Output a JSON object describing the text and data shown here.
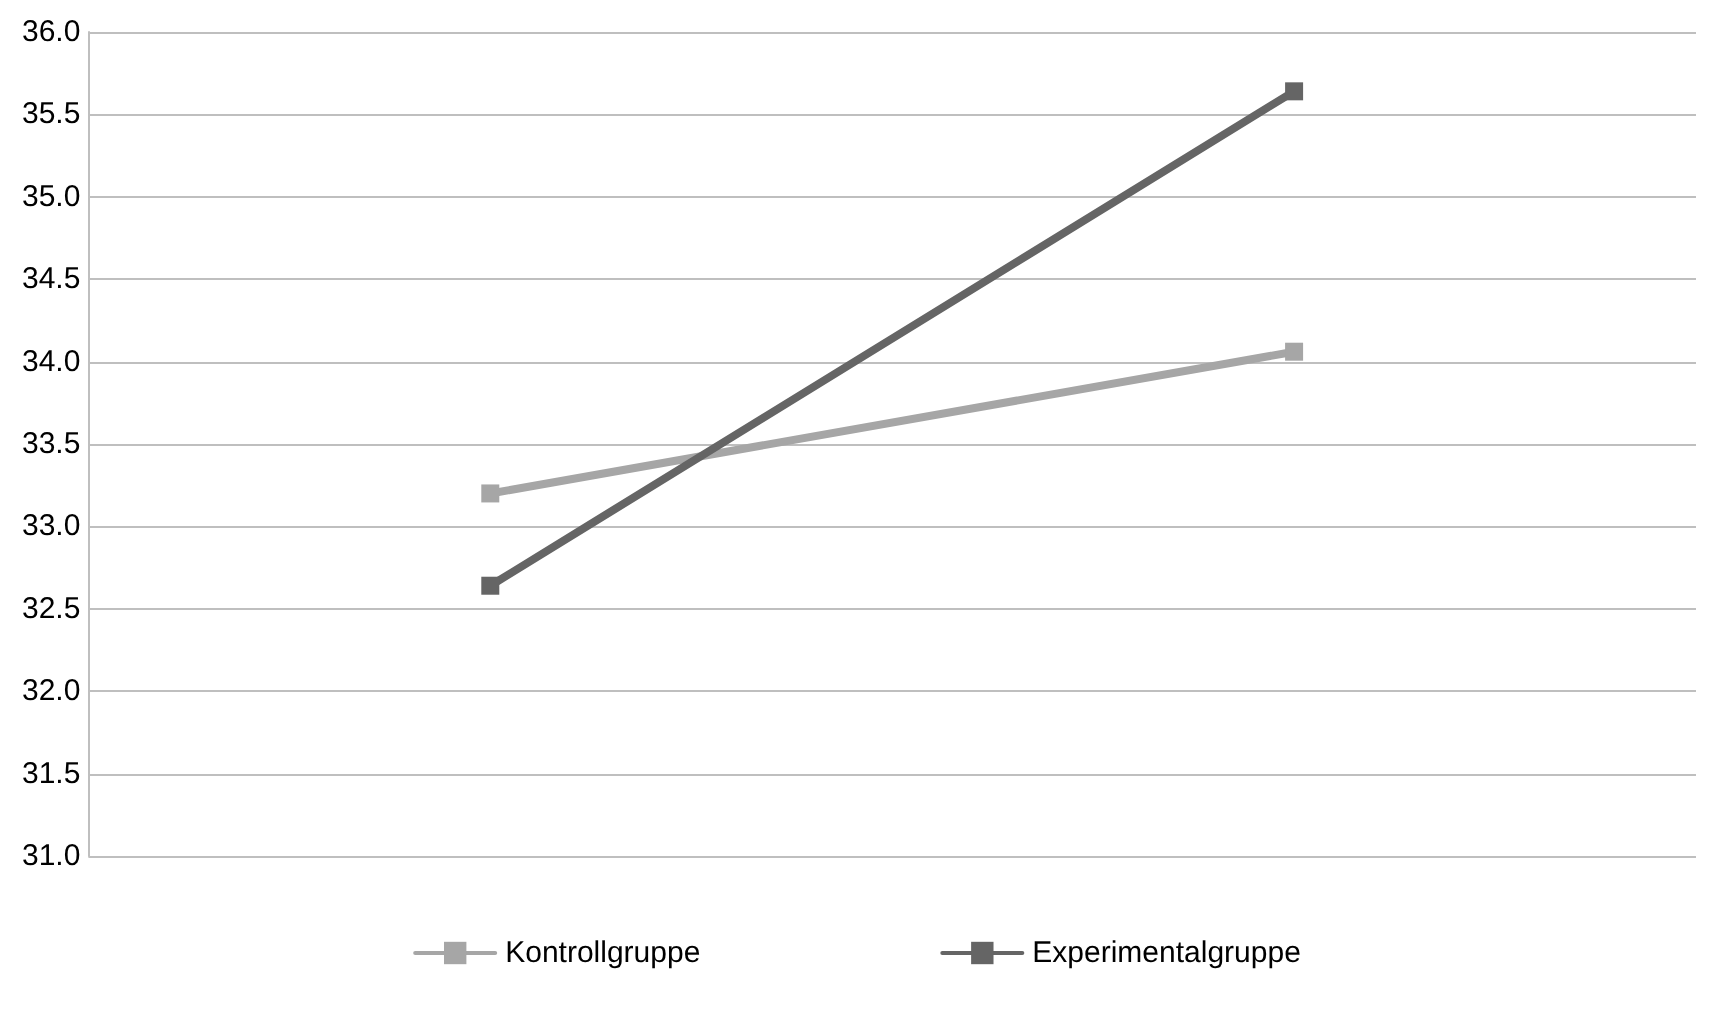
{
  "chart_data": {
    "type": "line",
    "categories": [
      null,
      null
    ],
    "series": [
      {
        "name": "Kontrollgruppe",
        "color": "#a6a6a6",
        "values": [
          33.2,
          34.06
        ]
      },
      {
        "name": "Experimentalgruppe",
        "color": "#656565",
        "values": [
          32.64,
          35.64
        ]
      }
    ],
    "ylim": [
      31,
      36
    ],
    "yticks": [
      {
        "value": 31,
        "label": "31.0"
      },
      {
        "value": 31.5,
        "label": "31.5"
      },
      {
        "value": 32,
        "label": "32.0"
      },
      {
        "value": 32.5,
        "label": "32.5"
      },
      {
        "value": 33,
        "label": "33.0"
      },
      {
        "value": 33.5,
        "label": "33.5"
      },
      {
        "value": 34,
        "label": "34.0"
      },
      {
        "value": 34.5,
        "label": "34.5"
      },
      {
        "value": 35,
        "label": "35.0"
      },
      {
        "value": 35.5,
        "label": "35.5"
      },
      {
        "value": 36,
        "label": "36.0"
      }
    ],
    "grid": "y",
    "legend": "bottom",
    "marker": "square",
    "line_style": "solid"
  }
}
